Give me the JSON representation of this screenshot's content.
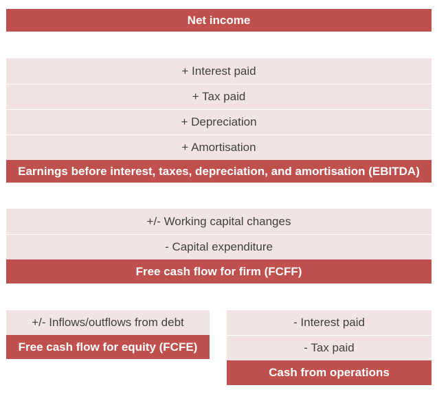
{
  "net_income": "Net income",
  "ebitda_block": {
    "items": [
      "+ Interest paid",
      "+ Tax paid",
      "+ Depreciation",
      "+ Amortisation"
    ],
    "total": "Earnings before interest, taxes, depreciation, and amortisation (EBITDA)"
  },
  "fcff_block": {
    "items": [
      "+/- Working capital changes",
      "- Capital expenditure"
    ],
    "total": "Free cash flow for firm (FCFF)"
  },
  "fcfe_block": {
    "items": [
      "+/- Inflows/outflows from debt"
    ],
    "total": "Free cash flow for equity (FCFE)"
  },
  "cfo_block": {
    "items": [
      "- Interest paid",
      "- Tax paid"
    ],
    "total": "Cash from operations"
  },
  "colors": {
    "header": "#c0504d",
    "light": "#f2e4e4",
    "text": "#404040"
  }
}
